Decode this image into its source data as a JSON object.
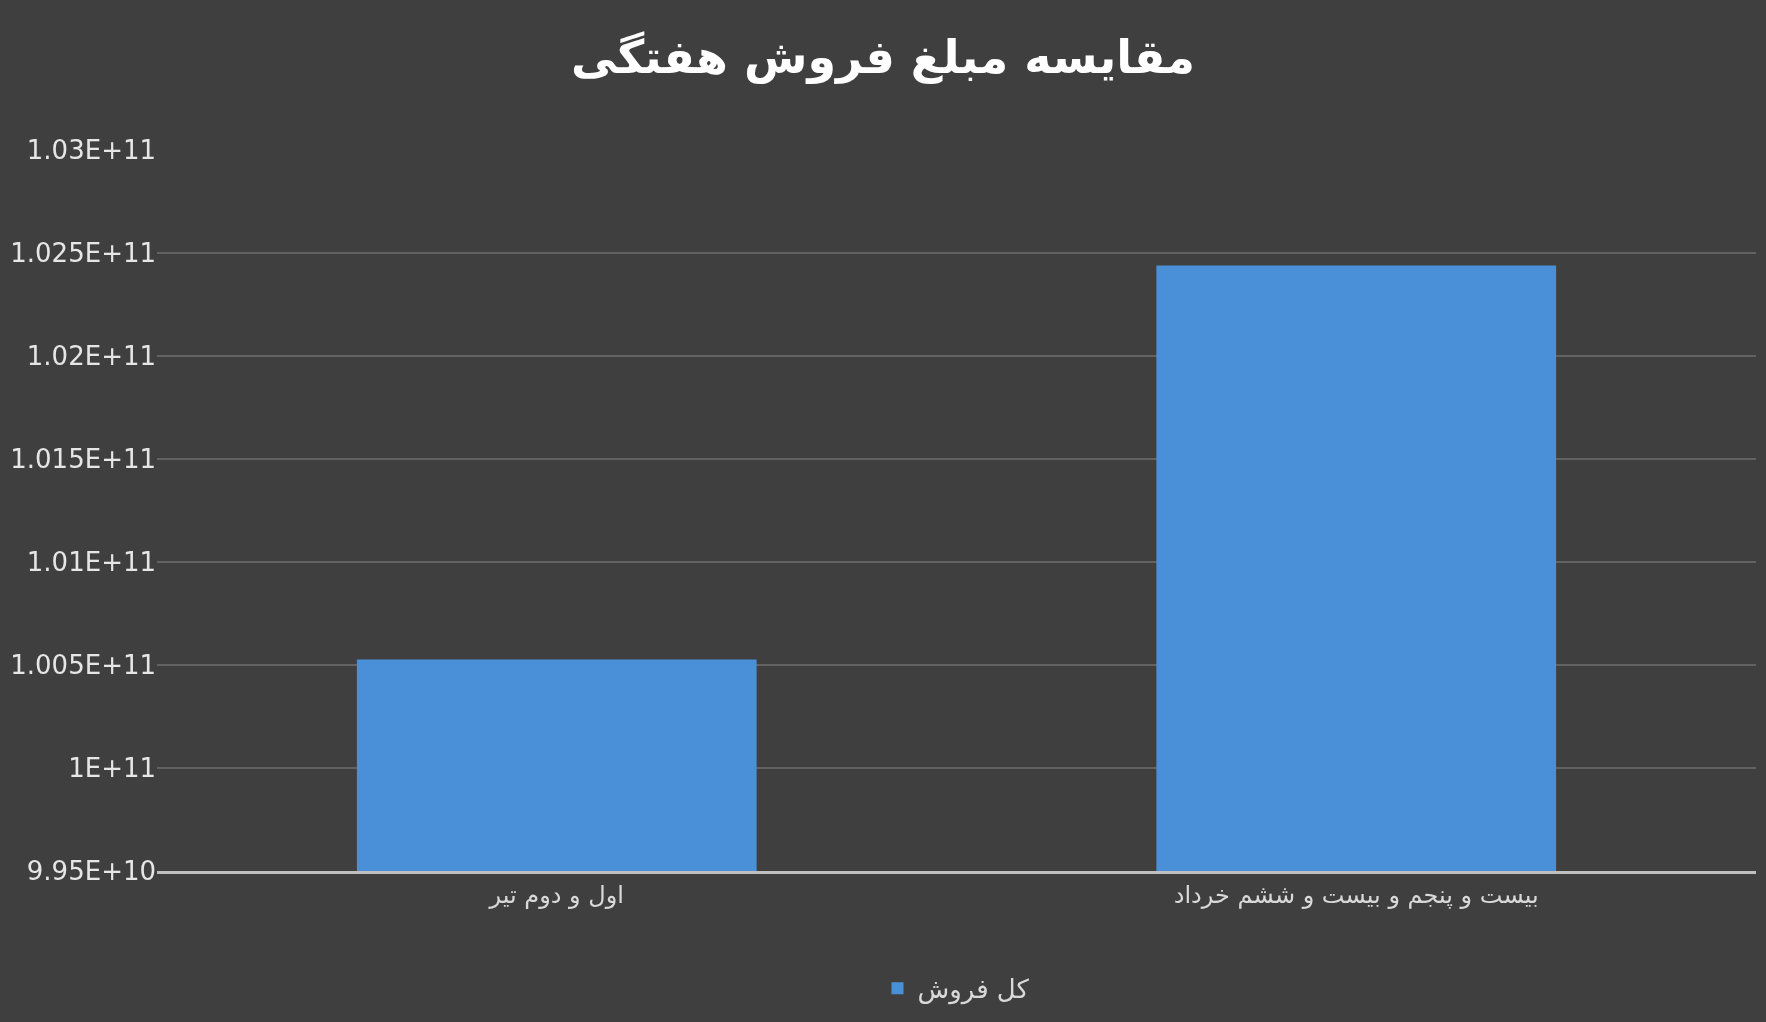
{
  "chart_data": {
    "type": "bar",
    "title": "مقایسه مبلغ فروش هفتگی",
    "categories": [
      "اول و دوم تیر",
      "بیست و پنجم و بیست و ششم خرداد"
    ],
    "series": [
      {
        "name": "کل فروش",
        "color": "#4a90d9",
        "values": [
          100527000000,
          102439000000
        ]
      }
    ],
    "ylim": [
      99500000000,
      103000000000
    ],
    "yticks": [
      {
        "value": 99500000000,
        "label": "9.95E+10"
      },
      {
        "value": 100000000000,
        "label": "1E+11"
      },
      {
        "value": 100500000000,
        "label": "1.005E+11"
      },
      {
        "value": 101000000000,
        "label": "1.01E+11"
      },
      {
        "value": 101500000000,
        "label": "1.015E+11"
      },
      {
        "value": 102000000000,
        "label": "1.02E+11"
      },
      {
        "value": 102500000000,
        "label": "1.025E+11"
      },
      {
        "value": 103000000000,
        "label": "1.03E+11"
      }
    ],
    "grid": "y",
    "legend": "bottom"
  }
}
